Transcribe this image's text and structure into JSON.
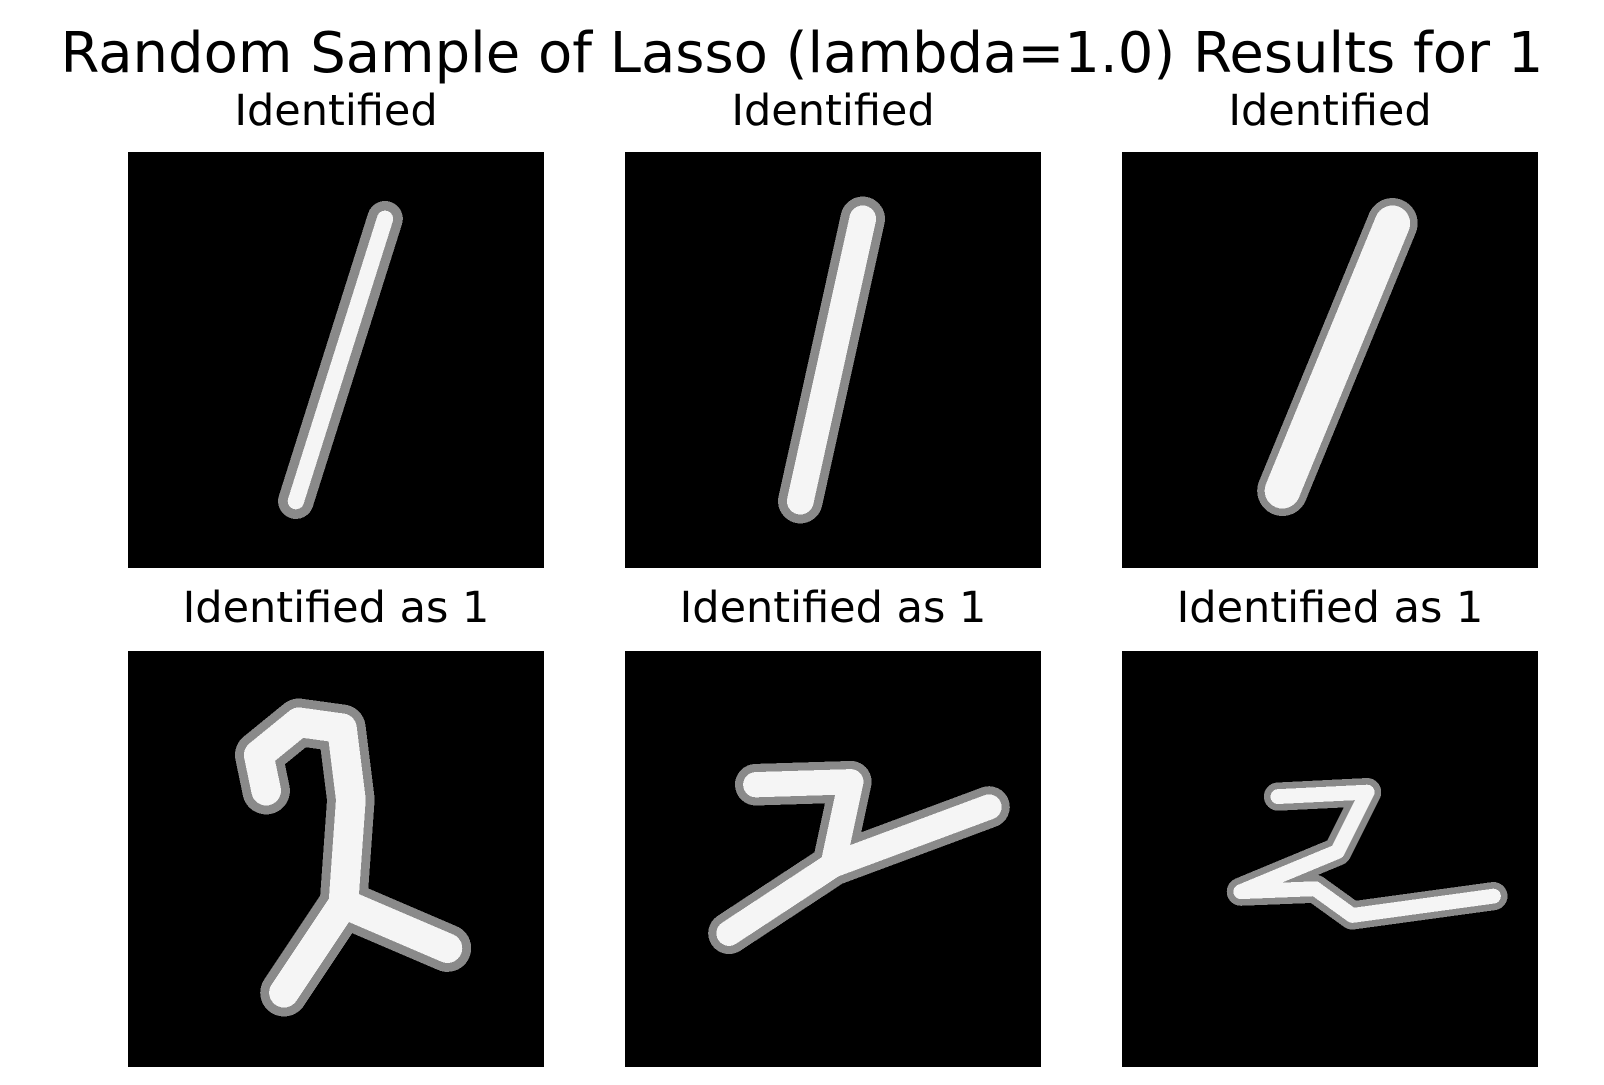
{
  "figure": {
    "title": "Random Sample of Lasso (lambda=1.0) Results for 1"
  },
  "panels": [
    {
      "title": "Identified",
      "digit_icon": "digit-one-icon"
    },
    {
      "title": "Identified",
      "digit_icon": "digit-one-icon"
    },
    {
      "title": "Identified",
      "digit_icon": "digit-one-icon"
    },
    {
      "title": "Identified as 1",
      "digit_icon": "digit-two-icon"
    },
    {
      "title": "Identified as 1",
      "digit_icon": "digit-two-icon"
    },
    {
      "title": "Identified as 1",
      "digit_icon": "digit-two-icon"
    }
  ],
  "colors": {
    "background": "#ffffff",
    "image_background": "#000000",
    "stroke": "#f5f5f5",
    "stroke_soft": "#8a8a8a"
  }
}
